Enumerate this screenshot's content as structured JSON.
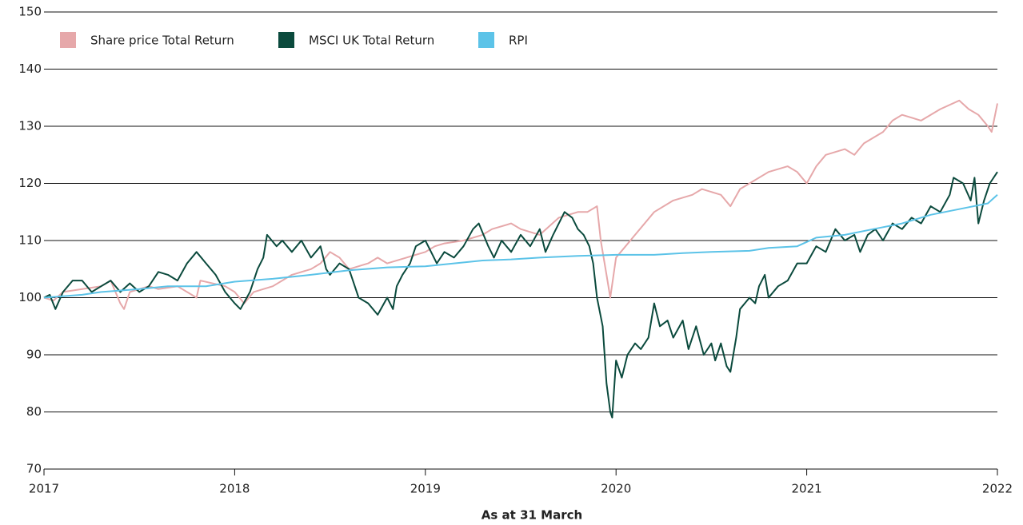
{
  "chart_data": {
    "type": "line",
    "xlabel": "As at 31 March",
    "xlim": [
      2017,
      2022
    ],
    "xticks": [
      2017,
      2018,
      2019,
      2020,
      2021,
      2022
    ],
    "ylim": [
      70,
      150
    ],
    "yticks": [
      70,
      80,
      90,
      100,
      110,
      120,
      130,
      140,
      150
    ],
    "grid": true,
    "legend": "upper left",
    "series": [
      {
        "name": "Share price Total Return",
        "color": "#e6a8aa",
        "x": [
          2017.0,
          2017.05,
          2017.1,
          2017.2,
          2017.3,
          2017.35,
          2017.4,
          2017.42,
          2017.45,
          2017.55,
          2017.6,
          2017.7,
          2017.8,
          2017.82,
          2017.95,
          2018.0,
          2018.05,
          2018.1,
          2018.2,
          2018.3,
          2018.4,
          2018.45,
          2018.5,
          2018.55,
          2018.6,
          2018.7,
          2018.75,
          2018.8,
          2018.9,
          2019.0,
          2019.05,
          2019.1,
          2019.2,
          2019.3,
          2019.35,
          2019.45,
          2019.5,
          2019.6,
          2019.7,
          2019.8,
          2019.85,
          2019.9,
          2019.92,
          2019.95,
          2019.97,
          2020.0,
          2020.05,
          2020.1,
          2020.2,
          2020.3,
          2020.4,
          2020.45,
          2020.55,
          2020.6,
          2020.65,
          2020.7,
          2020.8,
          2020.9,
          2020.95,
          2021.0,
          2021.05,
          2021.1,
          2021.2,
          2021.25,
          2021.3,
          2021.4,
          2021.45,
          2021.5,
          2021.6,
          2021.7,
          2021.8,
          2021.85,
          2021.9,
          2021.95,
          2021.97,
          2022.0
        ],
        "values": [
          100,
          99.5,
          101,
          101.5,
          102,
          103,
          99,
          98,
          101,
          102,
          101.5,
          102,
          100,
          103,
          102,
          101,
          99,
          101,
          102,
          104,
          105,
          106,
          108,
          107,
          105,
          106,
          107,
          106,
          107,
          108,
          109,
          109.5,
          110,
          111,
          112,
          113,
          112,
          111,
          114,
          115,
          115,
          116,
          110,
          104,
          100,
          107,
          109,
          111,
          115,
          117,
          118,
          119,
          118,
          116,
          119,
          120,
          122,
          123,
          122,
          120,
          123,
          125,
          126,
          125,
          127,
          129,
          131,
          132,
          131,
          133,
          134.5,
          133,
          132,
          130,
          129,
          134
        ]
      },
      {
        "name": "MSCI UK Total Return",
        "color": "#0b4a3d",
        "x": [
          2017.0,
          2017.03,
          2017.06,
          2017.1,
          2017.15,
          2017.2,
          2017.25,
          2017.3,
          2017.35,
          2017.4,
          2017.45,
          2017.5,
          2017.55,
          2017.6,
          2017.65,
          2017.7,
          2017.75,
          2017.8,
          2017.85,
          2017.9,
          2017.95,
          2018.0,
          2018.03,
          2018.08,
          2018.12,
          2018.15,
          2018.17,
          2018.22,
          2018.25,
          2018.3,
          2018.35,
          2018.4,
          2018.45,
          2018.48,
          2018.5,
          2018.55,
          2018.6,
          2018.62,
          2018.65,
          2018.7,
          2018.75,
          2018.8,
          2018.83,
          2018.85,
          2018.88,
          2018.92,
          2018.95,
          2019.0,
          2019.03,
          2019.06,
          2019.1,
          2019.15,
          2019.2,
          2019.25,
          2019.28,
          2019.33,
          2019.36,
          2019.4,
          2019.45,
          2019.5,
          2019.55,
          2019.6,
          2019.63,
          2019.67,
          2019.7,
          2019.73,
          2019.77,
          2019.8,
          2019.83,
          2019.86,
          2019.88,
          2019.9,
          2019.93,
          2019.95,
          2019.97,
          2019.98,
          2020.0,
          2020.03,
          2020.06,
          2020.1,
          2020.13,
          2020.17,
          2020.2,
          2020.23,
          2020.27,
          2020.3,
          2020.35,
          2020.38,
          2020.42,
          2020.46,
          2020.5,
          2020.52,
          2020.55,
          2020.58,
          2020.6,
          2020.63,
          2020.65,
          2020.7,
          2020.73,
          2020.75,
          2020.78,
          2020.8,
          2020.85,
          2020.9,
          2020.95,
          2021.0,
          2021.05,
          2021.1,
          2021.15,
          2021.2,
          2021.25,
          2021.28,
          2021.32,
          2021.36,
          2021.4,
          2021.45,
          2021.5,
          2021.55,
          2021.6,
          2021.65,
          2021.7,
          2021.75,
          2021.77,
          2021.82,
          2021.86,
          2021.88,
          2021.9,
          2021.93,
          2021.96,
          2022.0
        ],
        "values": [
          100,
          100.5,
          98,
          101,
          103,
          103,
          101,
          102,
          103,
          101,
          102.5,
          101,
          102,
          104.5,
          104,
          103,
          106,
          108,
          106,
          104,
          101,
          99,
          98,
          101,
          105,
          107,
          111,
          109,
          110,
          108,
          110,
          107,
          109,
          105,
          104,
          106,
          105,
          103,
          100,
          99,
          97,
          100,
          98,
          102,
          104,
          106,
          109,
          110,
          108,
          106,
          108,
          107,
          109,
          112,
          113,
          109,
          107,
          110,
          108,
          111,
          109,
          112,
          108,
          111,
          113,
          115,
          114,
          112,
          111,
          109,
          106,
          100,
          95,
          85,
          80,
          79,
          89,
          86,
          90,
          92,
          91,
          93,
          99,
          95,
          96,
          93,
          96,
          91,
          95,
          90,
          92,
          89,
          92,
          88,
          87,
          93,
          98,
          100,
          99,
          102,
          104,
          100,
          102,
          103,
          106,
          106,
          109,
          108,
          112,
          110,
          111,
          108,
          111,
          112,
          110,
          113,
          112,
          114,
          113,
          116,
          115,
          118,
          121,
          120,
          117,
          121,
          113,
          117,
          120,
          122
        ]
      },
      {
        "name": "RPI",
        "color": "#5cc3e8",
        "x": [
          2017.0,
          2017.2,
          2017.3,
          2017.5,
          2017.65,
          2017.85,
          2018.0,
          2018.2,
          2018.4,
          2018.6,
          2018.8,
          2019.0,
          2019.15,
          2019.3,
          2019.45,
          2019.6,
          2019.8,
          2020.0,
          2020.2,
          2020.35,
          2020.5,
          2020.7,
          2020.8,
          2020.95,
          2021.05,
          2021.2,
          2021.35,
          2021.5,
          2021.65,
          2021.8,
          2021.95,
          2022.0
        ],
        "values": [
          100,
          100.5,
          101,
          101.5,
          102,
          102,
          102.8,
          103.3,
          104,
          104.8,
          105.3,
          105.5,
          106,
          106.5,
          106.7,
          107,
          107.3,
          107.5,
          107.5,
          107.8,
          108,
          108.2,
          108.7,
          109,
          110.5,
          111,
          112,
          113,
          114.5,
          115.5,
          116.5,
          118
        ]
      }
    ]
  }
}
